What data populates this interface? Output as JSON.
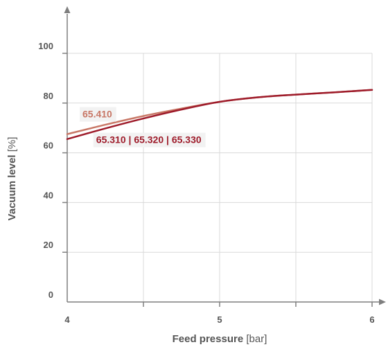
{
  "chart_data": {
    "type": "line",
    "xlabel": "Feed pressure",
    "xunit": "[bar]",
    "ylabel": "Vacuum level",
    "yunit": "[%]",
    "xlim": [
      4,
      6
    ],
    "ylim": [
      0,
      100
    ],
    "x_ticks": [
      4,
      5,
      6
    ],
    "x_minor_ticks": [
      4.5,
      5.5
    ],
    "y_ticks": [
      0,
      20,
      40,
      60,
      80,
      100
    ],
    "grid": true,
    "series": [
      {
        "color": "#c87766",
        "label_text": "65.410",
        "label_at": [
          4.1,
          74.2
        ],
        "points": [
          [
            4,
            67.5
          ],
          [
            4.25,
            71.3
          ],
          [
            4.5,
            74.8
          ],
          [
            4.75,
            77.8
          ],
          [
            5,
            80.5
          ],
          [
            5.25,
            82.3
          ],
          [
            5.5,
            83.4
          ],
          [
            5.75,
            84.3
          ],
          [
            6,
            85.3
          ]
        ]
      },
      {
        "color": "#9e1b2a",
        "label_text": "65.310 | 65.320 | 65.330",
        "label_at": [
          4.19,
          63.9
        ],
        "points": [
          [
            4,
            65.5
          ],
          [
            4.25,
            69.8
          ],
          [
            4.5,
            73.8
          ],
          [
            4.75,
            77.4
          ],
          [
            5,
            80.5
          ],
          [
            5.25,
            82.3
          ],
          [
            5.5,
            83.4
          ],
          [
            5.75,
            84.3
          ],
          [
            6,
            85.3
          ]
        ]
      }
    ]
  }
}
